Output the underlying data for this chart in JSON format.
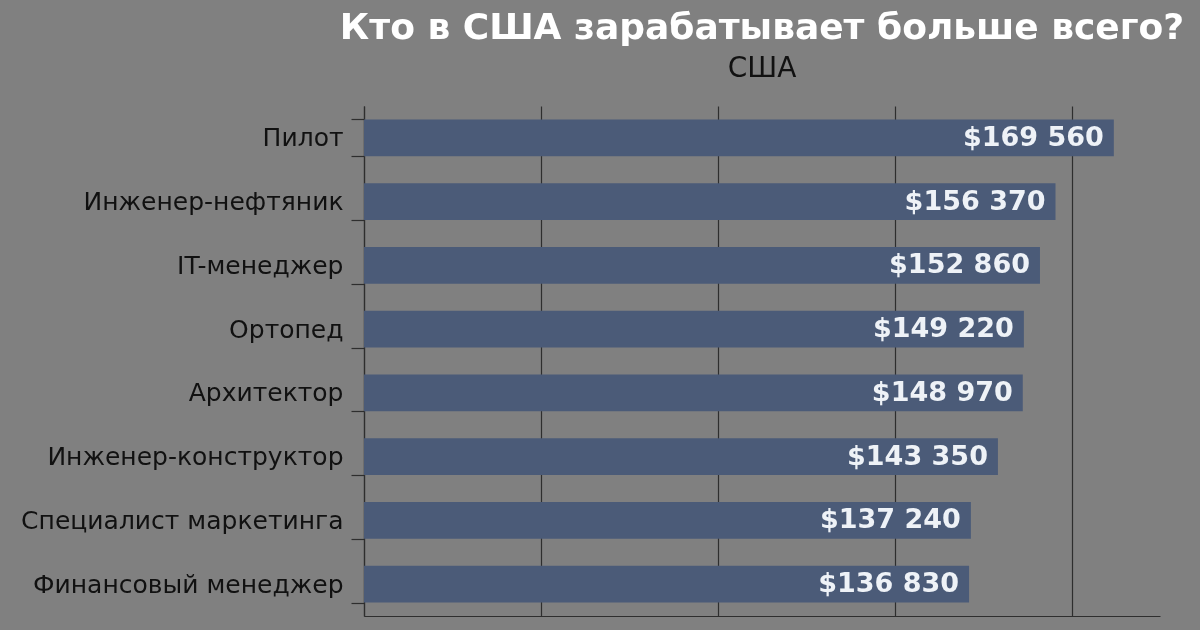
{
  "chart_data": {
    "type": "bar",
    "orientation": "horizontal",
    "title": "Кто в США зарабатывает больше всего?",
    "subtitle": "США",
    "categories": [
      "Пилот",
      "Инженер-нефтяник",
      "IT-менеджер",
      "Ортопед",
      "Архитектор",
      "Инженер-конструктор",
      "Специалист маркетинга",
      "Финансовый менеджер"
    ],
    "values": [
      169560,
      156370,
      152860,
      149220,
      148970,
      143350,
      137240,
      136830
    ],
    "value_labels": [
      "$169 560",
      "$156 370",
      "$152 860",
      "$149 220",
      "$148 970",
      "$143 350",
      "$137 240",
      "$136 830"
    ],
    "color": "#4b5b78",
    "xlim": [
      0,
      180000
    ],
    "xticks": [
      {
        "value": 0,
        "label": null
      },
      {
        "value": 40000,
        "label": null
      },
      {
        "value": 80000,
        "label": null
      },
      {
        "value": 120000,
        "label": null
      },
      {
        "value": 160000,
        "label": null
      }
    ],
    "grid": "x",
    "tick_labels": "y"
  }
}
